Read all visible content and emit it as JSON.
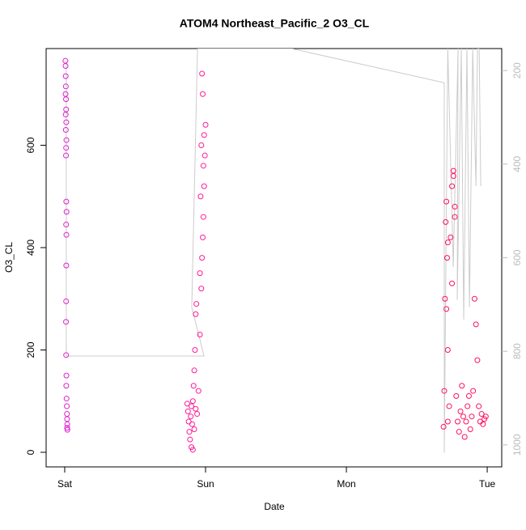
{
  "chart_data": {
    "type": "scatter",
    "title": "ATOM4 Northeast_Pacific_2 O3_CL",
    "x_label": "Date",
    "y_label": "O3_CL",
    "xlim": [
      -0.132,
      3.103
    ],
    "xticks": [
      {
        "value": 0,
        "label": "Sat"
      },
      {
        "value": 1,
        "label": "Sun"
      },
      {
        "value": 2,
        "label": "Mon"
      },
      {
        "value": 3,
        "label": "Tue"
      }
    ],
    "ylim": [
      -28.5,
      789
    ],
    "yticks": [
      0,
      200,
      400,
      600
    ],
    "y2lim": [
      1047,
      153
    ],
    "y2ticks": [
      200,
      400,
      600,
      800,
      1000
    ],
    "y2_color": "#bbbbbb",
    "series": [
      {
        "color": "#dd22cc",
        "x": [
          0.005,
          0.006,
          0.007,
          0.008,
          0.006,
          0.009,
          0.01,
          0.007,
          0.011,
          0.008,
          0.012,
          0.01,
          0.009,
          0.011,
          0.013,
          0.01,
          0.012,
          0.011,
          0.01,
          0.009,
          0.01,
          0.012,
          0.011,
          0.013,
          0.015,
          0.016,
          0.017,
          0.018,
          0.017,
          0.019
        ],
        "values": [
          765,
          755,
          735,
          715,
          700,
          690,
          670,
          660,
          645,
          630,
          610,
          595,
          580,
          490,
          470,
          445,
          425,
          365,
          295,
          255,
          190,
          150,
          130,
          105,
          90,
          75,
          65,
          55,
          48,
          44
        ]
      },
      {
        "color": "#ff1a99",
        "x": [
          0.87,
          0.875,
          0.88,
          0.885,
          0.89,
          0.895,
          0.9,
          0.905,
          0.91,
          0.915,
          0.92,
          0.925,
          0.93,
          0.935,
          0.94,
          0.9,
          0.91,
          0.92,
          0.93,
          0.95,
          0.96,
          0.97,
          0.975,
          0.98,
          0.985,
          0.99,
          0.995,
          1.0,
          0.98,
          0.975,
          0.97,
          0.965,
          0.96,
          0.985,
          0.99
        ],
        "values": [
          95,
          80,
          60,
          40,
          25,
          70,
          90,
          55,
          100,
          130,
          160,
          200,
          270,
          290,
          75,
          10,
          5,
          45,
          85,
          120,
          230,
          320,
          380,
          420,
          460,
          520,
          580,
          640,
          700,
          740,
          600,
          500,
          350,
          560,
          620
        ]
      },
      {
        "color": "#ff1060",
        "x": [
          2.69,
          2.695,
          2.7,
          2.705,
          2.71,
          2.715,
          2.72,
          2.72,
          2.73,
          2.74,
          2.75,
          2.76,
          2.77,
          2.78,
          2.79,
          2.8,
          2.81,
          2.82,
          2.83,
          2.84,
          2.85,
          2.86,
          2.87,
          2.88,
          2.89,
          2.9,
          2.91,
          2.92,
          2.93,
          2.94,
          2.95,
          2.96,
          2.97,
          2.98,
          2.99,
          2.71,
          2.72,
          2.76,
          2.77,
          2.75
        ],
        "values": [
          50,
          120,
          300,
          450,
          490,
          380,
          200,
          60,
          90,
          420,
          520,
          550,
          480,
          110,
          60,
          40,
          80,
          130,
          70,
          30,
          60,
          90,
          110,
          45,
          70,
          120,
          300,
          250,
          180,
          90,
          60,
          75,
          55,
          65,
          70,
          280,
          410,
          540,
          460,
          330
        ]
      },
      {
        "color": "#cccccc",
        "axis": "y2",
        "x": [
          0.011,
          0.011,
          0.989,
          0.902,
          0.943,
          1.609,
          2.695,
          2.695,
          2.72,
          2.759,
          2.793,
          2.787,
          2.816,
          2.833,
          2.856,
          2.874,
          2.897,
          2.92,
          2.931,
          2.943,
          2.954
        ],
        "values": [
          179,
          810,
          810,
          706,
          153,
          153,
          226,
          1017,
          153,
          620,
          153,
          690,
          153,
          732,
          153,
          706,
          153,
          447,
          153,
          153,
          447
        ]
      }
    ]
  }
}
